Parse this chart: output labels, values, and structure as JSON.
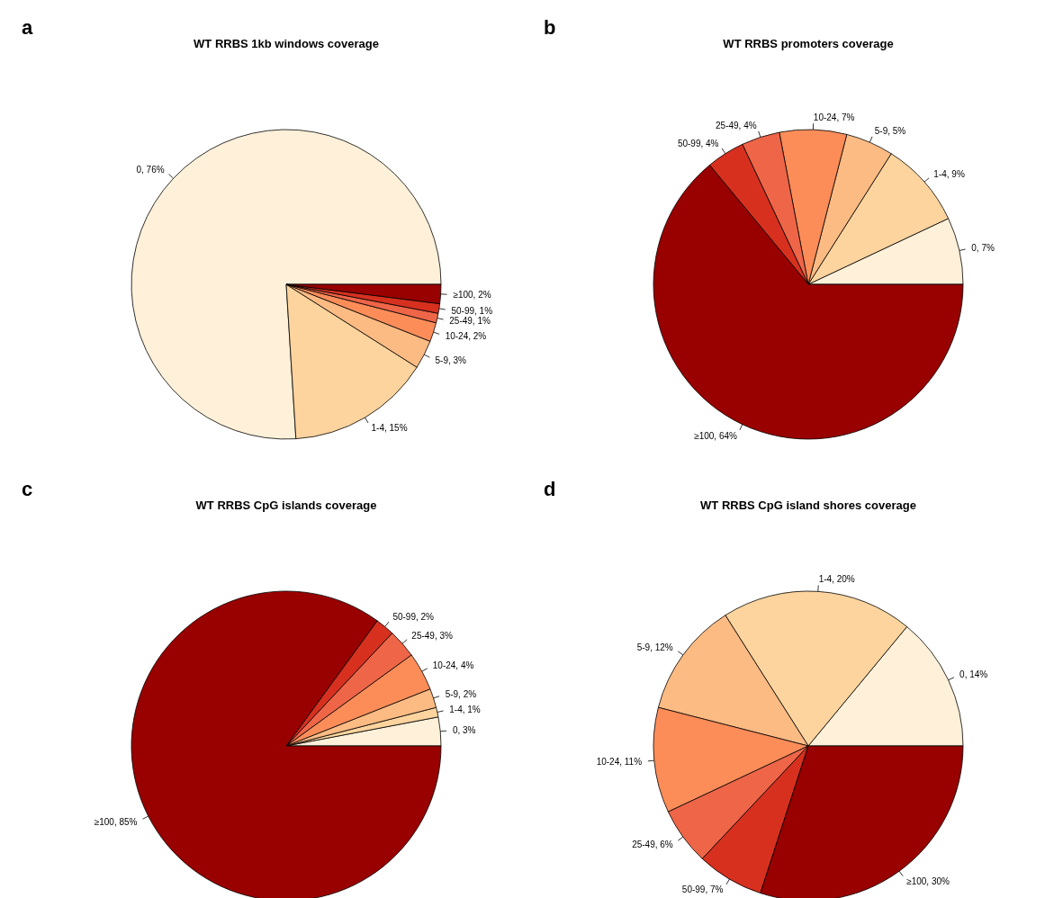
{
  "chart_data": [
    {
      "type": "pie",
      "title": "WT RRBS 1kb windows coverage",
      "annotations": [
        "a"
      ],
      "categories": [
        "0",
        "1-4",
        "5-9",
        "10-24",
        "25-49",
        "50-99",
        "≥100"
      ],
      "values": [
        76,
        15,
        3,
        2,
        1,
        1,
        2
      ],
      "value_labels": [
        ", 76%",
        ", 15%",
        ", 3%",
        ", 2%",
        ", 1%",
        ", 1%",
        ", 2%"
      ],
      "colors": [
        "#fef0d9",
        "#fdd49e",
        "#fdbb84",
        "#fc8d59",
        "#ef6548",
        "#d7301f",
        "#990000"
      ]
    },
    {
      "type": "pie",
      "title": "WT RRBS promoters coverage",
      "annotations": [
        "b"
      ],
      "categories": [
        "0",
        "1-4",
        "5-9",
        "10-24",
        "25-49",
        "50-99",
        "≥100"
      ],
      "values": [
        7,
        9,
        5,
        7,
        4,
        4,
        64
      ],
      "value_labels": [
        ", 7%",
        ", 9%",
        ", 5%",
        ", 7%",
        ", 4%",
        ", 4%",
        ", 64%"
      ],
      "colors": [
        "#fef0d9",
        "#fdd49e",
        "#fdbb84",
        "#fc8d59",
        "#ef6548",
        "#d7301f",
        "#990000"
      ]
    },
    {
      "type": "pie",
      "title": "WT RRBS CpG islands coverage",
      "annotations": [
        "c"
      ],
      "categories": [
        "0",
        "1-4",
        "5-9",
        "10-24",
        "25-49",
        "50-99",
        "≥100"
      ],
      "values": [
        3,
        1,
        2,
        4,
        3,
        2,
        85
      ],
      "value_labels": [
        ", 3%",
        ", 1%",
        ", 2%",
        ", 4%",
        ", 3%",
        ", 2%",
        ", 85%"
      ],
      "colors": [
        "#fef0d9",
        "#fdd49e",
        "#fdbb84",
        "#fc8d59",
        "#ef6548",
        "#d7301f",
        "#990000"
      ]
    },
    {
      "type": "pie",
      "title": "WT RRBS CpG island shores coverage",
      "annotations": [
        "d"
      ],
      "categories": [
        "0",
        "1-4",
        "5-9",
        "10-24",
        "25-49",
        "50-99",
        "≥100"
      ],
      "values": [
        14,
        20,
        12,
        11,
        6,
        7,
        30
      ],
      "value_labels": [
        ", 14%",
        ", 20%",
        ", 12%",
        ", 11%",
        ", 6%",
        ", 7%",
        ", 30%"
      ],
      "colors": [
        "#fef0d9",
        "#fdd49e",
        "#fdbb84",
        "#fc8d59",
        "#ef6548",
        "#d7301f",
        "#990000"
      ]
    }
  ]
}
